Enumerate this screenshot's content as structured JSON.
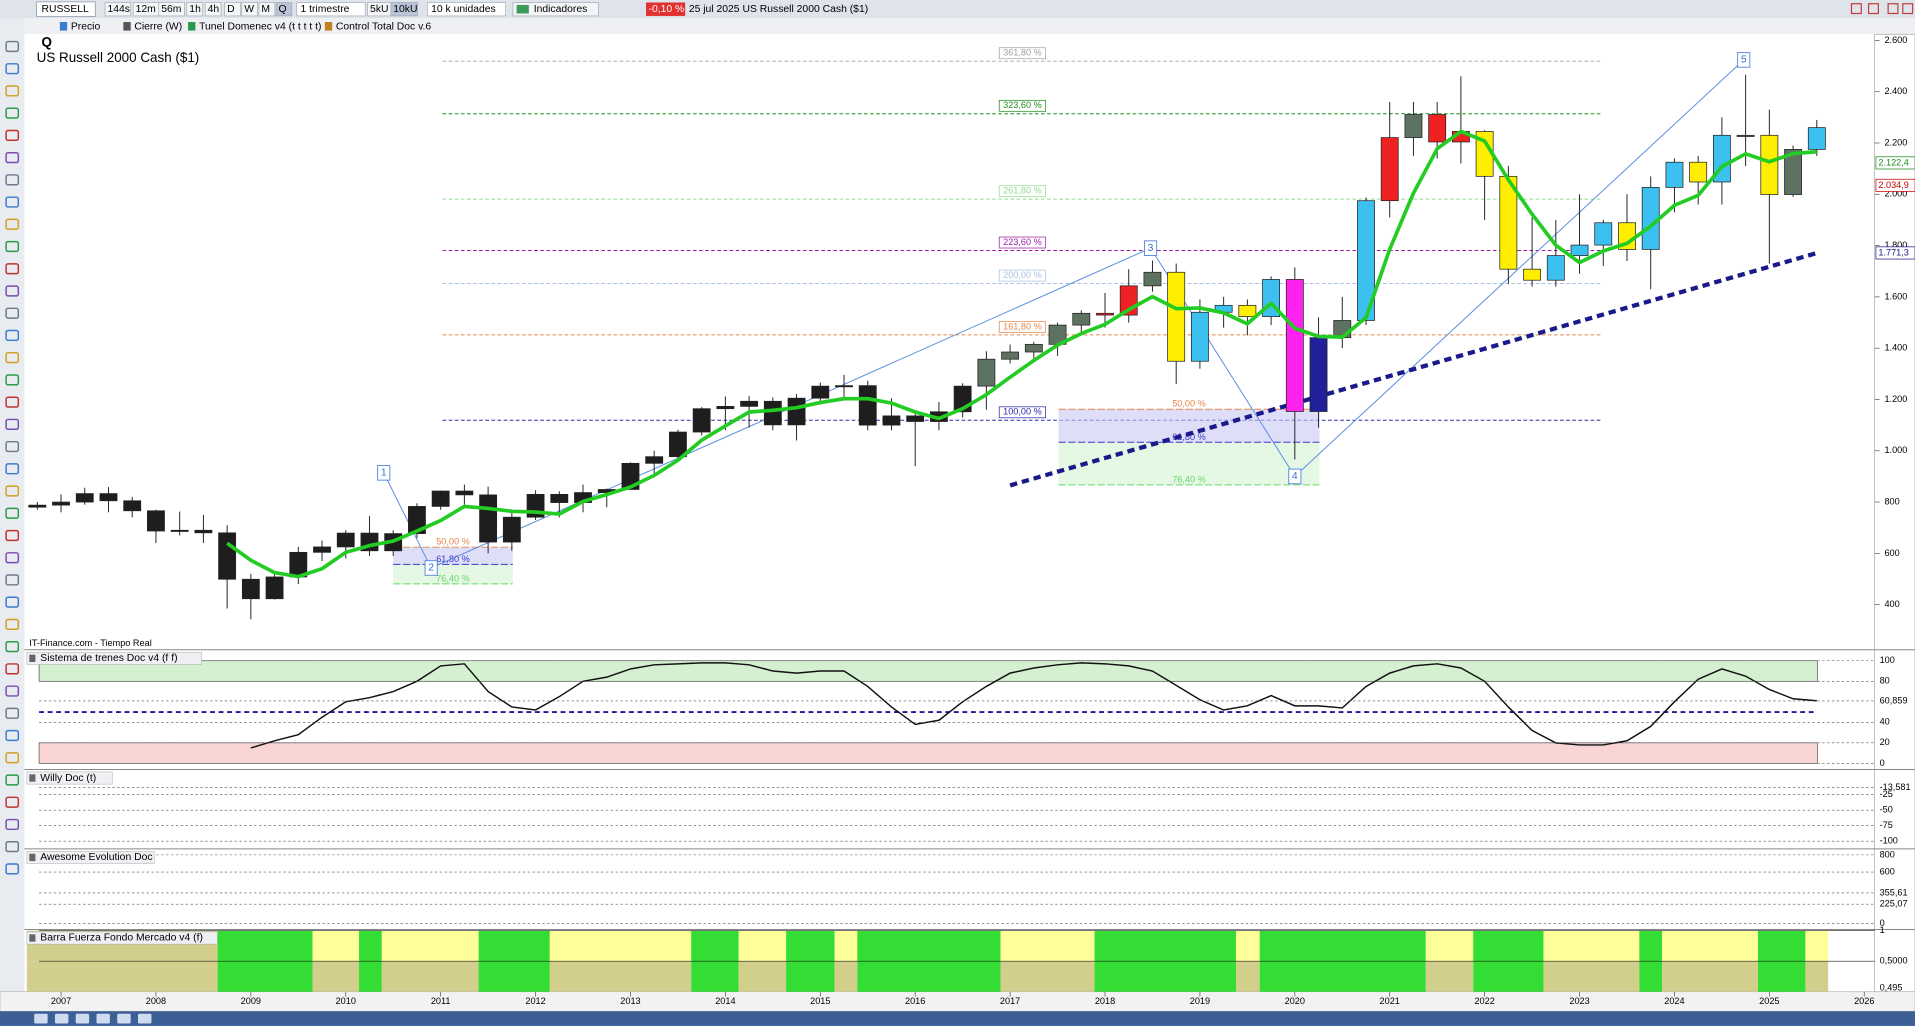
{
  "toolbar": {
    "symbol": "RUSSELL",
    "timeframes": [
      "144s",
      "12m",
      "56m",
      "1h",
      "4h",
      "D",
      "W",
      "M",
      "Q"
    ],
    "period": "1 trimestre",
    "units": [
      "5kU",
      "10kU"
    ],
    "units_select": "10 k unidades",
    "indicators": "Indicadores",
    "change": "-0,10 %",
    "info": "25 jul 2025 US Russell 2000 Cash ($1)"
  },
  "legend_bar": [
    "Precio",
    "Cierre (W)",
    "Tunel Domenec v4 (t t t t t)",
    "Control Total Doc v.6"
  ],
  "chart_data": {
    "type": "candlestick",
    "period_label": "Q",
    "title": "US Russell 2000 Cash ($1)",
    "source": "IT-Finance.com - Tiempo Real",
    "x": [
      2006.75,
      2007,
      2007.25,
      2007.5,
      2007.75,
      2008,
      2008.25,
      2008.5,
      2008.75,
      2009,
      2009.25,
      2009.5,
      2009.75,
      2010,
      2010.25,
      2010.5,
      2010.75,
      2011,
      2011.25,
      2011.5,
      2011.75,
      2012,
      2012.25,
      2012.5,
      2012.75,
      2013,
      2013.25,
      2013.5,
      2013.75,
      2014,
      2014.25,
      2014.5,
      2014.75,
      2015,
      2015.25,
      2015.5,
      2015.75,
      2016,
      2016.25,
      2016.5,
      2016.75,
      2017,
      2017.25,
      2017.5,
      2017.75,
      2018,
      2018.25,
      2018.5,
      2018.75,
      2019,
      2019.25,
      2019.5,
      2019.75,
      2020,
      2020.25,
      2020.5,
      2020.75,
      2021,
      2021.25,
      2021.5,
      2021.75,
      2022,
      2022.25,
      2022.5,
      2022.75,
      2023,
      2023.25,
      2023.5,
      2023.75,
      2024,
      2024.25,
      2024.5,
      2024.75,
      2025,
      2025.25,
      2025.5
    ],
    "open": [
      780,
      788,
      800,
      833,
      805,
      766,
      687,
      690,
      680,
      499,
      423,
      508,
      604,
      625,
      679,
      610,
      677,
      783,
      843,
      828,
      644,
      741,
      830,
      798,
      837,
      849,
      951,
      977,
      1073,
      1164,
      1173,
      1193,
      1101,
      1205,
      1252,
      1254,
      1100,
      1136,
      1114,
      1152,
      1252,
      1357,
      1385,
      1415,
      1490,
      1536,
      1529,
      1643,
      1696,
      1349,
      1540,
      1567,
      1523,
      1668,
      1153,
      1441,
      1508,
      1975,
      2221,
      2311,
      2204,
      2245,
      2070,
      1708,
      1665,
      1761,
      1802,
      1889,
      1785,
      2027,
      2125,
      2048,
      2230,
      2230,
      1999,
      2175
    ],
    "high": [
      800,
      830,
      856,
      858,
      820,
      770,
      763,
      750,
      710,
      520,
      530,
      625,
      650,
      690,
      745,
      690,
      795,
      845,
      868,
      860,
      770,
      846,
      842,
      868,
      853,
      955,
      1000,
      1082,
      1170,
      1212,
      1213,
      1208,
      1221,
      1266,
      1296,
      1273,
      1205,
      1150,
      1190,
      1263,
      1388,
      1414,
      1425,
      1500,
      1548,
      1615,
      1708,
      1742,
      1730,
      1590,
      1600,
      1590,
      1680,
      1715,
      1520,
      1600,
      1987,
      2360,
      2360,
      2360,
      2460,
      2250,
      2110,
      1910,
      1900,
      2000,
      1900,
      2000,
      2070,
      2140,
      2150,
      2300,
      2466,
      2330,
      2190,
      2290
    ],
    "low": [
      770,
      760,
      790,
      760,
      740,
      640,
      670,
      640,
      385,
      343,
      420,
      480,
      570,
      580,
      590,
      590,
      660,
      770,
      790,
      600,
      610,
      730,
      740,
      760,
      780,
      850,
      900,
      960,
      1060,
      1080,
      1090,
      1080,
      1040,
      1180,
      1200,
      1080,
      1080,
      940,
      1080,
      1130,
      1160,
      1340,
      1350,
      1370,
      1460,
      1480,
      1500,
      1620,
      1260,
      1320,
      1480,
      1450,
      1490,
      966,
      1090,
      1400,
      1490,
      1910,
      2150,
      2140,
      2120,
      1900,
      1650,
      1640,
      1640,
      1690,
      1720,
      1740,
      1630,
      1930,
      1960,
      1960,
      2110,
      1730,
      1990,
      2150
    ],
    "close": [
      788,
      800,
      833,
      805,
      766,
      687,
      690,
      680,
      499,
      423,
      508,
      604,
      625,
      679,
      610,
      677,
      783,
      843,
      828,
      644,
      741,
      830,
      798,
      837,
      849,
      951,
      977,
      1073,
      1164,
      1173,
      1193,
      1101,
      1205,
      1252,
      1254,
      1100,
      1136,
      1114,
      1152,
      1252,
      1357,
      1385,
      1415,
      1490,
      1536,
      1529,
      1643,
      1696,
      1349,
      1540,
      1567,
      1523,
      1668,
      1153,
      1441,
      1508,
      1975,
      2221,
      2311,
      2204,
      2245,
      2070,
      1708,
      1665,
      1761,
      1802,
      1889,
      1785,
      2027,
      2125,
      2048,
      2230,
      2230,
      1999,
      2175,
      2260
    ],
    "colors": [
      "#1e1e1e",
      "#1e1e1e",
      "#1e1e1e",
      "#1e1e1e",
      "#1e1e1e",
      "#1e1e1e",
      "#1e1e1e",
      "#1e1e1e",
      "#1e1e1e",
      "#1e1e1e",
      "#1e1e1e",
      "#1e1e1e",
      "#1e1e1e",
      "#1e1e1e",
      "#1e1e1e",
      "#1e1e1e",
      "#1e1e1e",
      "#1e1e1e",
      "#1e1e1e",
      "#1e1e1e",
      "#1e1e1e",
      "#1e1e1e",
      "#1e1e1e",
      "#1e1e1e",
      "#1e1e1e",
      "#1e1e1e",
      "#1e1e1e",
      "#1e1e1e",
      "#1e1e1e",
      "#1e1e1e",
      "#1e1e1e",
      "#1e1e1e",
      "#1e1e1e",
      "#1e1e1e",
      "#1e1e1e",
      "#1e1e1e",
      "#1e1e1e",
      "#1e1e1e",
      "#1e1e1e",
      "#1e1e1e",
      "#5d7260",
      "#5d7260",
      "#5d7260",
      "#5d7260",
      "#5d7260",
      "#ee2222",
      "#ee2222",
      "#5d7260",
      "#ffee00",
      "#3cc0f0",
      "#3cc0f0",
      "#ffee00",
      "#3cc0f0",
      "#ff22ee",
      "#20209a",
      "#5d7260",
      "#3cc0f0",
      "#ee2222",
      "#5d7260",
      "#ee2222",
      "#ee2222",
      "#ffee00",
      "#ffee00",
      "#ffee00",
      "#3cc0f0",
      "#3cc0f0",
      "#3cc0f0",
      "#ffee00",
      "#3cc0f0",
      "#3cc0f0",
      "#ffee00",
      "#3cc0f0",
      "#5d7260",
      "#ffee00",
      "#5d7260",
      "#3cc0f0"
    ],
    "ma": [
      null,
      null,
      null,
      null,
      null,
      null,
      null,
      null,
      639,
      573,
      525,
      509,
      540,
      604,
      630,
      648,
      687,
      728,
      783,
      775,
      764,
      761,
      753,
      802,
      829,
      859,
      904,
      963,
      1041,
      1097,
      1151,
      1158,
      1168,
      1188,
      1203,
      1203,
      1186,
      1151,
      1126,
      1164,
      1219,
      1287,
      1352,
      1412,
      1457,
      1493,
      1550,
      1601,
      1554,
      1557,
      1538,
      1495,
      1575,
      1478,
      1446,
      1443,
      1519,
      1786,
      2004,
      2178,
      2245,
      2208,
      2057,
      1922,
      1801,
      1734,
      1779,
      1809,
      1876,
      1957,
      1996,
      2108,
      2158,
      2127,
      2159,
      2166
    ],
    "ma_color": "#22cc22",
    "trend_line": {
      "x": [
        2017.0,
        2025.5
      ],
      "values": [
        865,
        1771
      ],
      "color": "#1a1a8a"
    },
    "fib_levels": [
      {
        "label": "361,80 %",
        "value": 2519,
        "color": "#a0a0a0"
      },
      {
        "label": "323,60 %",
        "value": 2314,
        "color": "#1f8f1f"
      },
      {
        "label": "261,80 %",
        "value": 1981,
        "color": "#8fdc8f"
      },
      {
        "label": "223,60 %",
        "value": 1781,
        "color": "#9a1fa6"
      },
      {
        "label": "200,00 %",
        "value": 1652,
        "color": "#a9c0e6"
      },
      {
        "label": "161,80 %",
        "value": 1452,
        "color": "#e8864a"
      },
      {
        "label": "100,00 %",
        "value": 1119,
        "color": "#2a2aa8"
      }
    ],
    "fib_span": [
      2011.02,
      2023.24
    ],
    "retracements": [
      {
        "span": [
          2010.5,
          2011.76
        ],
        "levels": [
          {
            "label": "50,00 %",
            "value": 624,
            "color": "#e8864a"
          },
          {
            "label": "61,80 %",
            "value": 557,
            "color": "#3a3acc"
          },
          {
            "label": "76,40 %",
            "value": 481,
            "color": "#6ad66a"
          }
        ]
      },
      {
        "span": [
          2017.51,
          2020.26
        ],
        "levels": [
          {
            "label": "50,00 %",
            "value": 1162,
            "color": "#e8864a"
          },
          {
            "label": "61,80 %",
            "value": 1033,
            "color": "#3a3acc"
          },
          {
            "label": "76,40 %",
            "value": 867,
            "color": "#6ad66a"
          }
        ]
      }
    ],
    "waves": [
      {
        "label": "1",
        "x": 2010.4,
        "value": 914
      },
      {
        "label": "2",
        "x": 2010.9,
        "value": 543
      },
      {
        "label": "3",
        "x": 2018.48,
        "value": 1790
      },
      {
        "label": "4",
        "x": 2020.0,
        "value": 900
      },
      {
        "label": "5",
        "x": 2024.73,
        "value": 2524
      }
    ],
    "price_labels": [
      {
        "label": "2.122,4",
        "value": 2122.4,
        "color": "#1a8a1a"
      },
      {
        "label": "2.034,9",
        "value": 2034.9,
        "color": "#cc0000"
      },
      {
        "label": "1.771,3",
        "value": 1771.3,
        "color": "#1a1a8a"
      }
    ],
    "xlim": [
      2006.64,
      2026.11
    ],
    "xticks": [
      2007,
      2008,
      2009,
      2010,
      2011,
      2012,
      2013,
      2014,
      2015,
      2016,
      2017,
      2018,
      2019,
      2020,
      2021,
      2022,
      2023,
      2024,
      2025,
      2026
    ],
    "ylim": [
      224,
      2624
    ],
    "yticks": [
      {
        "value": 2600,
        "label": "2.600"
      },
      {
        "value": 2400,
        "label": "2.400"
      },
      {
        "value": 2200,
        "label": "2.200"
      },
      {
        "value": 2000,
        "label": "2.000"
      },
      {
        "value": 1800,
        "label": "1.800"
      },
      {
        "value": 1600,
        "label": "1.600"
      },
      {
        "value": 1400,
        "label": "1.400"
      },
      {
        "value": 1200,
        "label": "1.200"
      },
      {
        "value": 1000,
        "label": "1.000"
      },
      800,
      600,
      400
    ]
  },
  "panels": [
    {
      "title": "Sistema de trenes Doc v4 (f f)",
      "ylim": [
        -3.6,
        109.5
      ],
      "yticks": [
        100,
        80,
        {
          "value": 60.859,
          "label": "60,859"
        },
        40,
        20,
        0
      ],
      "upper_zone": [
        80,
        100
      ],
      "lower_zone": [
        0,
        20
      ],
      "mid_line": 50,
      "values": [
        null,
        null,
        null,
        null,
        null,
        null,
        null,
        null,
        null,
        15,
        22,
        28,
        45,
        60,
        64,
        70,
        80,
        95,
        97,
        70,
        55,
        52,
        65,
        80,
        84,
        92,
        96,
        97,
        98,
        98,
        96,
        90,
        88,
        90,
        90,
        75,
        55,
        38,
        42,
        60,
        75,
        88,
        93,
        96,
        98,
        97,
        95,
        90,
        76,
        62,
        52,
        56,
        66,
        56,
        56,
        54,
        75,
        88,
        95,
        97,
        93,
        80,
        55,
        32,
        20,
        18,
        18,
        22,
        36,
        60,
        82,
        92,
        85,
        72,
        63,
        61
      ]
    },
    {
      "title": "Willy Doc (t)",
      "ylim": [
        -110.5,
        13.8
      ],
      "yticks": [
        {
          "value": -13.581,
          "label": "-13,581"
        },
        -25,
        -50,
        -75,
        -100
      ]
    },
    {
      "title": "Awesome Evolution Doc",
      "ylim": [
        -42,
        856
      ],
      "yticks": [
        800,
        600,
        {
          "value": 355.61,
          "label": "355,61"
        },
        {
          "value": 225.07,
          "label": "225,07"
        },
        0
      ]
    },
    {
      "title": "Barra Fuerza Fondo Mercado v4 (f)",
      "ylim": [
        0,
        1.0
      ],
      "yticks": [
        1,
        {
          "value": 0.5,
          "label": "0,5000"
        }
      ],
      "footer_label": "0,495",
      "boundaries": [
        2006.64,
        2008.65,
        2009.65,
        2010.14,
        2010.38,
        2011.4,
        2012.15,
        2013.64,
        2014.14,
        2014.64,
        2015.15,
        2015.39,
        2016.9,
        2017.89,
        2019.38,
        2019.63,
        2021.38,
        2021.88,
        2022.62,
        2023.63,
        2023.87,
        2024.88,
        2025.38,
        2025.62
      ],
      "colors": [
        "#d2cf8c",
        "#33dd33",
        "#ffff99",
        "#33dd33",
        "#ffff99",
        "#33dd33",
        "#ffff99",
        "#33dd33",
        "#ffff99",
        "#33dd33",
        "#ffff99",
        "#33dd33",
        "#ffff99",
        "#33dd33",
        "#ffff99",
        "#33dd33",
        "#ffff99",
        "#33dd33",
        "#ffff99",
        "#33dd33",
        "#ffff99",
        "#33dd33",
        "#ffff99"
      ]
    }
  ]
}
